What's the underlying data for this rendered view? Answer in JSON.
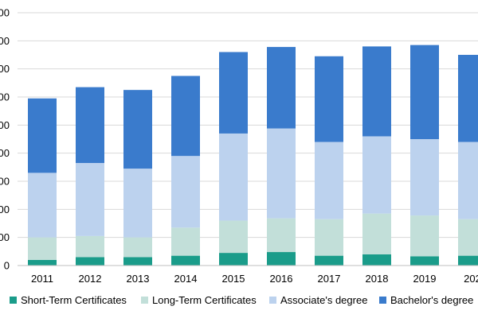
{
  "chart_data": {
    "type": "bar",
    "stacked": true,
    "title": "",
    "xlabel": "",
    "ylabel": "",
    "categories": [
      "2011",
      "2012",
      "2013",
      "2014",
      "2015",
      "2016",
      "2017",
      "2018",
      "2019",
      "202"
    ],
    "y_tick_labels": [
      "0",
      "00",
      "00",
      "00",
      "00",
      "00",
      "00",
      "00",
      "00",
      "00"
    ],
    "ylim": [
      0,
      9
    ],
    "grid": true,
    "legend_position": "bottom",
    "series": [
      {
        "name": "Short-Term Certificates",
        "color": "#1a9c8a",
        "values": [
          0.2,
          0.3,
          0.3,
          0.35,
          0.45,
          0.48,
          0.35,
          0.4,
          0.33,
          0.35
        ]
      },
      {
        "name": "Long-Term Certificates",
        "color": "#c2dfd9",
        "values": [
          0.8,
          0.75,
          0.7,
          1.0,
          1.15,
          1.2,
          1.3,
          1.45,
          1.45,
          1.3
        ]
      },
      {
        "name": "Associate's degree",
        "color": "#bcd2ee",
        "values": [
          2.3,
          2.6,
          2.45,
          2.55,
          3.1,
          3.2,
          2.75,
          2.75,
          2.72,
          2.75
        ]
      },
      {
        "name": "Bachelor's degree",
        "color": "#3a7bcc",
        "values": [
          2.65,
          2.7,
          2.8,
          2.85,
          2.9,
          2.9,
          3.05,
          3.2,
          3.35,
          3.1
        ]
      }
    ]
  }
}
